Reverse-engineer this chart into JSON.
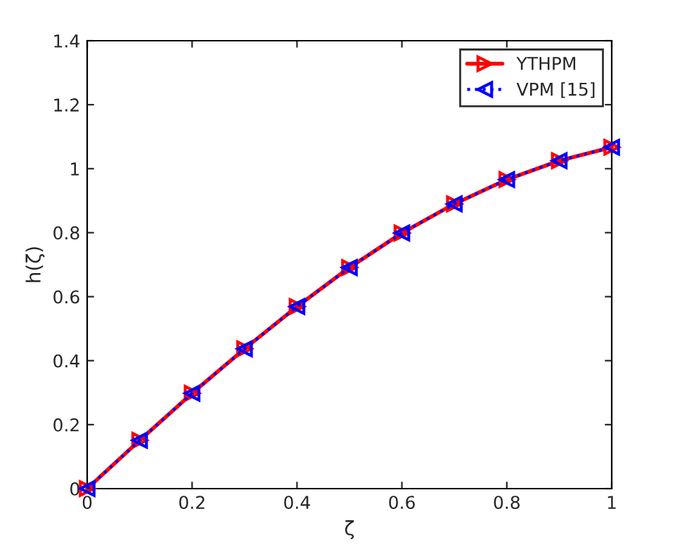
{
  "chart_data": {
    "type": "line",
    "xlabel": "ζ",
    "ylabel": "h(ζ)",
    "x": [
      0,
      0.1,
      0.2,
      0.3,
      0.4,
      0.5,
      0.6,
      0.7,
      0.8,
      0.9,
      1
    ],
    "series": [
      {
        "name": "YTHPM",
        "color": "#ff0000",
        "marker": "triangle",
        "line_style": "solid",
        "values": [
          0,
          0.151,
          0.298,
          0.437,
          0.569,
          0.691,
          0.799,
          0.89,
          0.966,
          1.025,
          1.067
        ]
      },
      {
        "name": "VPM [15]",
        "color": "#0000ff",
        "marker": "triangle",
        "line_style": "dotted",
        "values": [
          0,
          0.151,
          0.298,
          0.437,
          0.569,
          0.691,
          0.799,
          0.89,
          0.966,
          1.025,
          1.067
        ]
      }
    ],
    "xlim": [
      0,
      1
    ],
    "ylim": [
      0,
      1.4
    ],
    "xticks": [
      0,
      0.2,
      0.4,
      0.6,
      0.8,
      1
    ],
    "yticks": [
      0,
      0.2,
      0.4,
      0.6,
      0.8,
      1,
      1.2,
      1.4
    ],
    "grid": false,
    "legend": "top right"
  }
}
